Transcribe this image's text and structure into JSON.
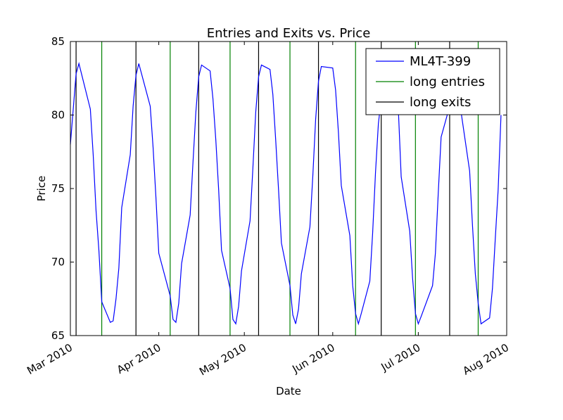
{
  "chart_data": {
    "type": "line",
    "title": "Entries and Exits vs. Price",
    "x_label": "Date",
    "y_label": "Price",
    "series": [
      {
        "name": "ML4T-399",
        "color": "#0000ff",
        "x": [
          "2010-03-01",
          "2010-03-02",
          "2010-03-03",
          "2010-03-04",
          "2010-03-08",
          "2010-03-09",
          "2010-03-10",
          "2010-03-11",
          "2010-03-12",
          "2010-03-15",
          "2010-03-16",
          "2010-03-17",
          "2010-03-18",
          "2010-03-19",
          "2010-03-22",
          "2010-03-23",
          "2010-03-24",
          "2010-03-25",
          "2010-03-29",
          "2010-03-30",
          "2010-03-31",
          "2010-04-01",
          "2010-04-05",
          "2010-04-06",
          "2010-04-07",
          "2010-04-08",
          "2010-04-09",
          "2010-04-12",
          "2010-04-13",
          "2010-04-14",
          "2010-04-15",
          "2010-04-16",
          "2010-04-19",
          "2010-04-20",
          "2010-04-21",
          "2010-04-22",
          "2010-04-23",
          "2010-04-26",
          "2010-04-27",
          "2010-04-28",
          "2010-04-29",
          "2010-04-30",
          "2010-05-03",
          "2010-05-04",
          "2010-05-05",
          "2010-05-06",
          "2010-05-07",
          "2010-05-10",
          "2010-05-11",
          "2010-05-12",
          "2010-05-13",
          "2010-05-14",
          "2010-05-17",
          "2010-05-18",
          "2010-05-19",
          "2010-05-20",
          "2010-05-21",
          "2010-05-24",
          "2010-05-25",
          "2010-05-26",
          "2010-05-27",
          "2010-05-28",
          "2010-06-01",
          "2010-06-02",
          "2010-06-03",
          "2010-06-04",
          "2010-06-07",
          "2010-06-08",
          "2010-06-09",
          "2010-06-10",
          "2010-06-11",
          "2010-06-14",
          "2010-06-15",
          "2010-06-16",
          "2010-06-17",
          "2010-06-18",
          "2010-06-21",
          "2010-06-22",
          "2010-06-23",
          "2010-06-24",
          "2010-06-25",
          "2010-06-28",
          "2010-06-29",
          "2010-06-30",
          "2010-07-01",
          "2010-07-02",
          "2010-07-06",
          "2010-07-07",
          "2010-07-08",
          "2010-07-09",
          "2010-07-12",
          "2010-07-13",
          "2010-07-14",
          "2010-07-15",
          "2010-07-16",
          "2010-07-19",
          "2010-07-20",
          "2010-07-21",
          "2010-07-22",
          "2010-07-23",
          "2010-07-26",
          "2010-07-27",
          "2010-07-28",
          "2010-07-29",
          "2010-07-30"
        ],
        "values": [
          78.0,
          80.4,
          82.8,
          83.5,
          80.4,
          77.3,
          73.5,
          70.8,
          67.3,
          65.9,
          66.0,
          67.5,
          69.6,
          73.7,
          77.3,
          80.6,
          82.7,
          83.5,
          80.6,
          77.8,
          74.4,
          70.6,
          67.7,
          66.1,
          65.9,
          67.2,
          69.9,
          73.2,
          76.8,
          80.2,
          82.6,
          83.4,
          83.0,
          81.1,
          78.3,
          74.9,
          70.8,
          68.2,
          66.1,
          65.8,
          67.0,
          69.4,
          72.8,
          76.4,
          80.2,
          82.6,
          83.4,
          83.1,
          81.4,
          78.3,
          74.9,
          71.3,
          68.4,
          66.4,
          65.8,
          66.8,
          69.2,
          72.4,
          75.8,
          79.7,
          82.3,
          83.3,
          83.2,
          81.7,
          78.8,
          75.2,
          71.8,
          68.4,
          66.5,
          65.8,
          66.5,
          68.7,
          72.0,
          76.1,
          79.4,
          81.1,
          83.5,
          83.3,
          82.5,
          80.4,
          75.8,
          72.1,
          68.9,
          66.5,
          65.8,
          66.3,
          68.4,
          70.6,
          74.7,
          78.5,
          80.6,
          83.4,
          83.2,
          82.6,
          80.2,
          76.2,
          72.5,
          69.2,
          67.2,
          65.8,
          66.2,
          68.2,
          71.6,
          74.9,
          80.0
        ]
      }
    ],
    "vlines": [
      {
        "name": "long entries",
        "color": "#008000",
        "x": [
          "2010-03-12",
          "2010-04-05",
          "2010-04-26",
          "2010-05-17",
          "2010-06-09",
          "2010-06-30",
          "2010-07-22"
        ]
      },
      {
        "name": "long exits",
        "color": "#000000",
        "x": [
          "2010-03-03",
          "2010-03-24",
          "2010-04-15",
          "2010-05-06",
          "2010-05-27",
          "2010-06-18",
          "2010-07-12"
        ]
      }
    ],
    "xlim": [
      "2010-03-01",
      "2010-08-01"
    ],
    "xticks": [
      {
        "value": "2010-03-01",
        "label": "Mar 2010"
      },
      {
        "value": "2010-04-01",
        "label": "Apr 2010"
      },
      {
        "value": "2010-05-01",
        "label": "May 2010"
      },
      {
        "value": "2010-06-01",
        "label": "Jun 2010"
      },
      {
        "value": "2010-07-01",
        "label": "Jul 2010"
      },
      {
        "value": "2010-08-01",
        "label": "Aug 2010"
      }
    ],
    "ylim": [
      65,
      85
    ],
    "yticks": [
      65,
      70,
      75,
      80,
      85
    ],
    "legend": "upper right"
  }
}
